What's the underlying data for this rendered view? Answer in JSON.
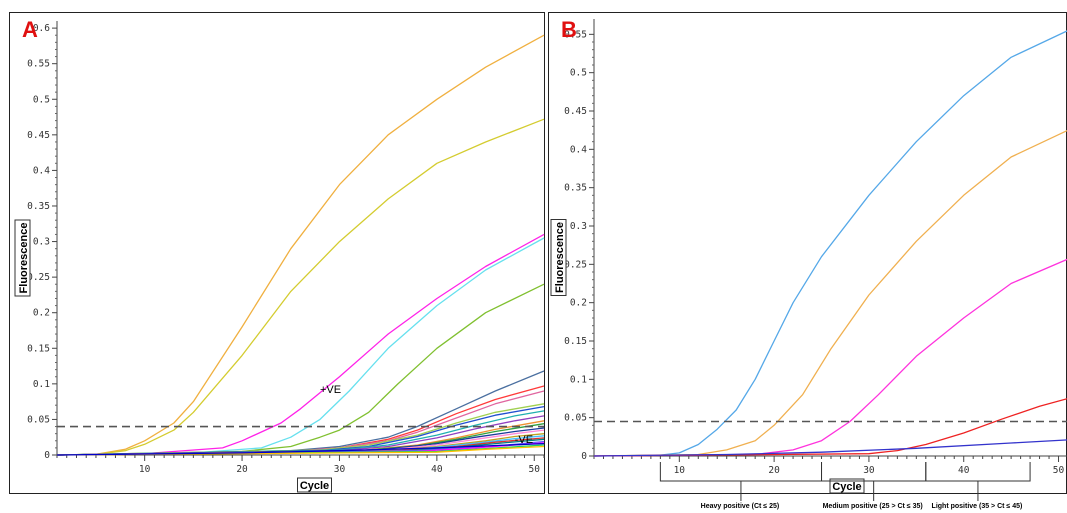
{
  "panels": {
    "a_label": "A",
    "b_label": "B"
  },
  "chart_data": [
    {
      "panel": "A",
      "type": "line",
      "xlabel": "Cycle",
      "ylabel": "Fluorescence",
      "xlim": [
        1,
        51
      ],
      "ylim": [
        0,
        0.61
      ],
      "xticks": [
        10,
        20,
        30,
        40,
        50
      ],
      "yticks": [
        0,
        0.05,
        0.1,
        0.15,
        0.2,
        0.25,
        0.3,
        0.35,
        0.4,
        0.45,
        0.5,
        0.55,
        0.6
      ],
      "ytick_labels": [
        "0",
        "0.05",
        "0.1",
        "0.15",
        "0.2",
        "0.25",
        "0.3",
        "0.35",
        "0.4",
        "0.45",
        "0.5",
        "0.55",
        "0.6"
      ],
      "threshold": 0.04,
      "annotations": [
        {
          "text": "+VE",
          "x": 28,
          "y": 0.087
        },
        {
          "text": "-VE",
          "x": 48,
          "y": 0.017
        }
      ],
      "series": [
        {
          "color": "#f0b040",
          "values": [
            [
              1,
              0
            ],
            [
              5,
              0.001
            ],
            [
              8,
              0.008
            ],
            [
              10,
              0.02
            ],
            [
              13,
              0.045
            ],
            [
              15,
              0.075
            ],
            [
              20,
              0.18
            ],
            [
              25,
              0.29
            ],
            [
              30,
              0.38
            ],
            [
              35,
              0.45
            ],
            [
              40,
              0.5
            ],
            [
              45,
              0.545
            ],
            [
              51,
              0.59
            ]
          ]
        },
        {
          "color": "#d4cc30",
          "values": [
            [
              1,
              0
            ],
            [
              5,
              0.001
            ],
            [
              8,
              0.006
            ],
            [
              10,
              0.015
            ],
            [
              13,
              0.035
            ],
            [
              15,
              0.06
            ],
            [
              20,
              0.14
            ],
            [
              25,
              0.23
            ],
            [
              30,
              0.3
            ],
            [
              35,
              0.36
            ],
            [
              40,
              0.41
            ],
            [
              45,
              0.44
            ],
            [
              51,
              0.472
            ]
          ]
        },
        {
          "color": "#ff22e8",
          "values": [
            [
              1,
              0
            ],
            [
              10,
              0.002
            ],
            [
              18,
              0.01
            ],
            [
              20,
              0.02
            ],
            [
              24,
              0.045
            ],
            [
              26,
              0.065
            ],
            [
              30,
              0.11
            ],
            [
              35,
              0.17
            ],
            [
              40,
              0.22
            ],
            [
              45,
              0.265
            ],
            [
              51,
              0.31
            ]
          ]
        },
        {
          "color": "#66e0ee",
          "values": [
            [
              1,
              0
            ],
            [
              15,
              0.003
            ],
            [
              22,
              0.01
            ],
            [
              25,
              0.025
            ],
            [
              28,
              0.05
            ],
            [
              31,
              0.09
            ],
            [
              35,
              0.15
            ],
            [
              40,
              0.21
            ],
            [
              45,
              0.26
            ],
            [
              51,
              0.305
            ]
          ]
        },
        {
          "color": "#80c030",
          "values": [
            [
              1,
              0
            ],
            [
              20,
              0.005
            ],
            [
              25,
              0.012
            ],
            [
              28,
              0.025
            ],
            [
              30,
              0.035
            ],
            [
              33,
              0.06
            ],
            [
              36,
              0.1
            ],
            [
              40,
              0.15
            ],
            [
              45,
              0.2
            ],
            [
              51,
              0.24
            ]
          ]
        },
        {
          "color": "#4a6fa0",
          "values": [
            [
              1,
              0
            ],
            [
              25,
              0.006
            ],
            [
              30,
              0.012
            ],
            [
              35,
              0.025
            ],
            [
              38,
              0.04
            ],
            [
              42,
              0.065
            ],
            [
              46,
              0.09
            ],
            [
              51,
              0.118
            ]
          ]
        },
        {
          "color": "#ff3a3a",
          "values": [
            [
              1,
              0
            ],
            [
              25,
              0.005
            ],
            [
              30,
              0.01
            ],
            [
              35,
              0.022
            ],
            [
              38,
              0.035
            ],
            [
              42,
              0.058
            ],
            [
              46,
              0.078
            ],
            [
              51,
              0.097
            ]
          ]
        },
        {
          "color": "#e066a0",
          "values": [
            [
              1,
              0
            ],
            [
              25,
              0.005
            ],
            [
              30,
              0.01
            ],
            [
              35,
              0.02
            ],
            [
              38,
              0.032
            ],
            [
              42,
              0.052
            ],
            [
              46,
              0.072
            ],
            [
              51,
              0.09
            ]
          ]
        },
        {
          "color": "#a0d050",
          "values": [
            [
              1,
              0
            ],
            [
              28,
              0.007
            ],
            [
              33,
              0.014
            ],
            [
              38,
              0.028
            ],
            [
              42,
              0.045
            ],
            [
              46,
              0.06
            ],
            [
              51,
              0.072
            ]
          ]
        },
        {
          "color": "#2050d0",
          "values": [
            [
              1,
              0
            ],
            [
              28,
              0.006
            ],
            [
              33,
              0.012
            ],
            [
              38,
              0.026
            ],
            [
              42,
              0.042
            ],
            [
              46,
              0.056
            ],
            [
              51,
              0.068
            ]
          ]
        },
        {
          "color": "#20b0b0",
          "values": [
            [
              1,
              0
            ],
            [
              30,
              0.007
            ],
            [
              35,
              0.014
            ],
            [
              40,
              0.028
            ],
            [
              44,
              0.042
            ],
            [
              48,
              0.055
            ],
            [
              51,
              0.062
            ]
          ]
        },
        {
          "color": "#9040c0",
          "values": [
            [
              1,
              0
            ],
            [
              30,
              0.006
            ],
            [
              35,
              0.012
            ],
            [
              40,
              0.024
            ],
            [
              44,
              0.037
            ],
            [
              48,
              0.048
            ],
            [
              51,
              0.055
            ]
          ]
        },
        {
          "color": "#f09030",
          "values": [
            [
              1,
              0
            ],
            [
              32,
              0.006
            ],
            [
              38,
              0.014
            ],
            [
              42,
              0.024
            ],
            [
              46,
              0.036
            ],
            [
              51,
              0.048
            ]
          ]
        },
        {
          "color": "#30a040",
          "values": [
            [
              1,
              0
            ],
            [
              32,
              0.006
            ],
            [
              38,
              0.013
            ],
            [
              42,
              0.022
            ],
            [
              46,
              0.033
            ],
            [
              51,
              0.044
            ]
          ]
        },
        {
          "color": "#1a3a9a",
          "values": [
            [
              1,
              0
            ],
            [
              34,
              0.007
            ],
            [
              40,
              0.016
            ],
            [
              44,
              0.025
            ],
            [
              48,
              0.033
            ],
            [
              51,
              0.038
            ]
          ]
        },
        {
          "color": "#ff8ad8",
          "values": [
            [
              1,
              0
            ],
            [
              34,
              0.006
            ],
            [
              40,
              0.014
            ],
            [
              44,
              0.022
            ],
            [
              48,
              0.03
            ],
            [
              51,
              0.035
            ]
          ]
        },
        {
          "color": "#c0a020",
          "values": [
            [
              1,
              0
            ],
            [
              35,
              0.006
            ],
            [
              40,
              0.012
            ],
            [
              45,
              0.02
            ],
            [
              48,
              0.026
            ],
            [
              51,
              0.03
            ]
          ]
        },
        {
          "color": "#40c0ff",
          "values": [
            [
              1,
              0
            ],
            [
              35,
              0.005
            ],
            [
              40,
              0.011
            ],
            [
              45,
              0.018
            ],
            [
              48,
              0.023
            ],
            [
              51,
              0.027
            ]
          ]
        },
        {
          "color": "#e03030",
          "values": [
            [
              1,
              0
            ],
            [
              36,
              0.006
            ],
            [
              42,
              0.012
            ],
            [
              46,
              0.018
            ],
            [
              51,
              0.024
            ]
          ]
        },
        {
          "color": "#008080",
          "values": [
            [
              1,
              0
            ],
            [
              36,
              0.005
            ],
            [
              42,
              0.011
            ],
            [
              46,
              0.016
            ],
            [
              51,
              0.022
            ]
          ]
        },
        {
          "color": "#6060ff",
          "values": [
            [
              1,
              0
            ],
            [
              38,
              0.006
            ],
            [
              44,
              0.011
            ],
            [
              48,
              0.015
            ],
            [
              51,
              0.019
            ]
          ]
        },
        {
          "color": "#ff00ff",
          "values": [
            [
              1,
              0
            ],
            [
              38,
              0.005
            ],
            [
              44,
              0.01
            ],
            [
              48,
              0.014
            ],
            [
              51,
              0.017
            ]
          ]
        },
        {
          "color": "#20d060",
          "values": [
            [
              1,
              0
            ],
            [
              40,
              0.005
            ],
            [
              45,
              0.009
            ],
            [
              51,
              0.014
            ]
          ]
        },
        {
          "color": "#ffc000",
          "values": [
            [
              1,
              0
            ],
            [
              40,
              0.004
            ],
            [
              45,
              0.008
            ],
            [
              51,
              0.012
            ]
          ]
        },
        {
          "color": "#0000cc",
          "values": [
            [
              1,
              0
            ],
            [
              20,
              0.003
            ],
            [
              30,
              0.006
            ],
            [
              40,
              0.01
            ],
            [
              51,
              0.016
            ]
          ]
        }
      ]
    },
    {
      "panel": "B",
      "type": "line",
      "xlabel": "Cycle",
      "ylabel": "Fluorescence",
      "xlim": [
        1,
        51
      ],
      "ylim": [
        0,
        0.57
      ],
      "xticks": [
        10,
        20,
        30,
        40,
        50
      ],
      "yticks": [
        0,
        0.05,
        0.1,
        0.15,
        0.2,
        0.25,
        0.3,
        0.35,
        0.4,
        0.45,
        0.5,
        0.55
      ],
      "ytick_labels": [
        "0",
        "0.05",
        "0.1",
        "0.15",
        "0.2",
        "0.25",
        "0.3",
        "0.35",
        "0.4",
        "0.45",
        "0.5",
        "0.55"
      ],
      "threshold": 0.045,
      "brackets": [
        {
          "label": "Heavy positive (Ct ≤ 25)",
          "x_start": 8,
          "x_end": 25
        },
        {
          "label": "Medium positive (25 > Ct ≤ 35)",
          "x_start": 25,
          "x_end": 36
        },
        {
          "label": "Light positive (35 > Ct ≤ 45)",
          "x_start": 36,
          "x_end": 47
        }
      ],
      "series": [
        {
          "color": "#55a8e8",
          "values": [
            [
              1,
              0
            ],
            [
              8,
              0.001
            ],
            [
              10,
              0.004
            ],
            [
              12,
              0.015
            ],
            [
              14,
              0.035
            ],
            [
              16,
              0.06
            ],
            [
              18,
              0.1
            ],
            [
              20,
              0.15
            ],
            [
              22,
              0.2
            ],
            [
              25,
              0.26
            ],
            [
              30,
              0.34
            ],
            [
              35,
              0.41
            ],
            [
              40,
              0.47
            ],
            [
              45,
              0.52
            ],
            [
              51,
              0.555
            ]
          ]
        },
        {
          "color": "#f0b050",
          "values": [
            [
              1,
              0
            ],
            [
              12,
              0.002
            ],
            [
              15,
              0.008
            ],
            [
              18,
              0.02
            ],
            [
              20,
              0.04
            ],
            [
              23,
              0.08
            ],
            [
              26,
              0.14
            ],
            [
              30,
              0.21
            ],
            [
              35,
              0.28
            ],
            [
              40,
              0.34
            ],
            [
              45,
              0.39
            ],
            [
              51,
              0.425
            ]
          ]
        },
        {
          "color": "#ff33dd",
          "values": [
            [
              1,
              0
            ],
            [
              18,
              0.002
            ],
            [
              22,
              0.008
            ],
            [
              25,
              0.02
            ],
            [
              28,
              0.045
            ],
            [
              31,
              0.08
            ],
            [
              35,
              0.13
            ],
            [
              40,
              0.18
            ],
            [
              45,
              0.225
            ],
            [
              51,
              0.257
            ]
          ]
        },
        {
          "color": "#ee2222",
          "values": [
            [
              1,
              0
            ],
            [
              30,
              0.003
            ],
            [
              33,
              0.007
            ],
            [
              36,
              0.015
            ],
            [
              40,
              0.03
            ],
            [
              44,
              0.048
            ],
            [
              48,
              0.065
            ],
            [
              51,
              0.075
            ]
          ]
        },
        {
          "color": "#3333cc",
          "values": [
            [
              1,
              0
            ],
            [
              15,
              0.002
            ],
            [
              25,
              0.005
            ],
            [
              35,
              0.01
            ],
            [
              45,
              0.017
            ],
            [
              51,
              0.021
            ]
          ]
        }
      ]
    }
  ]
}
